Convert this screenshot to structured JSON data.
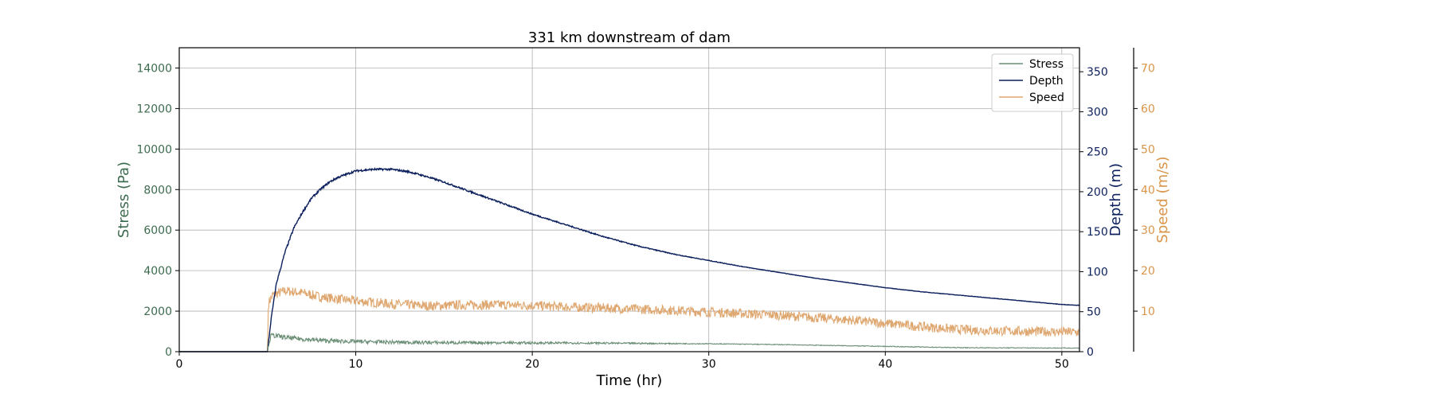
{
  "chart_data": {
    "type": "line",
    "title": "331 km downstream of dam",
    "xlabel": "Time (hr)",
    "xlim": [
      0,
      51
    ],
    "xticks": [
      0,
      10,
      20,
      30,
      40,
      50
    ],
    "grid": true,
    "legend": {
      "placement": "top-right",
      "entries": [
        "Stress",
        "Depth",
        "Speed"
      ]
    },
    "axes": {
      "stress": {
        "label": "Stress (Pa)",
        "color": "#3d6b4f",
        "range": [
          0,
          15000
        ],
        "ticks": [
          0,
          2000,
          4000,
          6000,
          8000,
          10000,
          12000,
          14000
        ]
      },
      "depth": {
        "label": "Depth (m)",
        "color": "#0b1f5c",
        "range": [
          0,
          380
        ],
        "ticks": [
          0,
          50,
          100,
          150,
          200,
          250,
          300,
          350
        ]
      },
      "speed": {
        "label": "Speed (m/s)",
        "color": "#d9954a",
        "range": [
          0,
          75
        ],
        "ticks": [
          10,
          20,
          30,
          40,
          50,
          60,
          70
        ]
      }
    },
    "series": [
      {
        "name": "Stress",
        "axis": "stress",
        "color": "#6b8e76",
        "x": [
          0,
          5,
          5.05,
          5.2,
          5.5,
          6,
          7,
          8,
          9,
          10,
          12,
          14,
          16,
          18,
          20,
          22,
          24,
          26,
          28,
          30,
          32,
          34,
          36,
          38,
          40,
          42,
          44,
          46,
          48,
          50,
          51
        ],
        "y": [
          0,
          0,
          300,
          800,
          780,
          700,
          620,
          560,
          520,
          500,
          470,
          450,
          440,
          440,
          430,
          430,
          420,
          410,
          400,
          390,
          370,
          350,
          320,
          290,
          260,
          230,
          200,
          190,
          185,
          180,
          178
        ]
      },
      {
        "name": "Depth",
        "axis": "depth",
        "color": "#0b1f5c",
        "x": [
          0,
          5,
          5.2,
          5.5,
          6,
          6.5,
          7,
          7.5,
          8,
          8.5,
          9,
          9.5,
          10,
          11,
          12,
          13,
          14,
          15,
          16,
          17,
          18,
          19,
          20,
          22,
          24,
          26,
          28,
          30,
          32,
          34,
          36,
          38,
          40,
          42,
          44,
          46,
          48,
          50,
          51
        ],
        "y": [
          0,
          0,
          40,
          85,
          125,
          155,
          175,
          192,
          203,
          212,
          218,
          222,
          226,
          228,
          228,
          225,
          219,
          212,
          204,
          196,
          188,
          180,
          172,
          158,
          144,
          132,
          122,
          114,
          106,
          99,
          92,
          86,
          80,
          75,
          71,
          67,
          63,
          59,
          58
        ]
      },
      {
        "name": "Speed",
        "axis": "speed",
        "color": "#dfa770",
        "x": [
          0,
          5,
          5.05,
          5.3,
          6,
          7,
          8,
          9,
          10,
          12,
          14,
          16,
          18,
          20,
          22,
          24,
          26,
          28,
          30,
          32,
          34,
          36,
          38,
          40,
          42,
          44,
          46,
          48,
          50,
          51
        ],
        "y": [
          0,
          0,
          12,
          14,
          15,
          14.5,
          13.5,
          13,
          12.5,
          11.8,
          11.3,
          11.5,
          11.6,
          11.4,
          11,
          10.8,
          10.5,
          10.2,
          9.8,
          9.4,
          9,
          8.4,
          7.8,
          7,
          6.2,
          5.5,
          5.2,
          5,
          4.9,
          4.8
        ]
      }
    ]
  }
}
